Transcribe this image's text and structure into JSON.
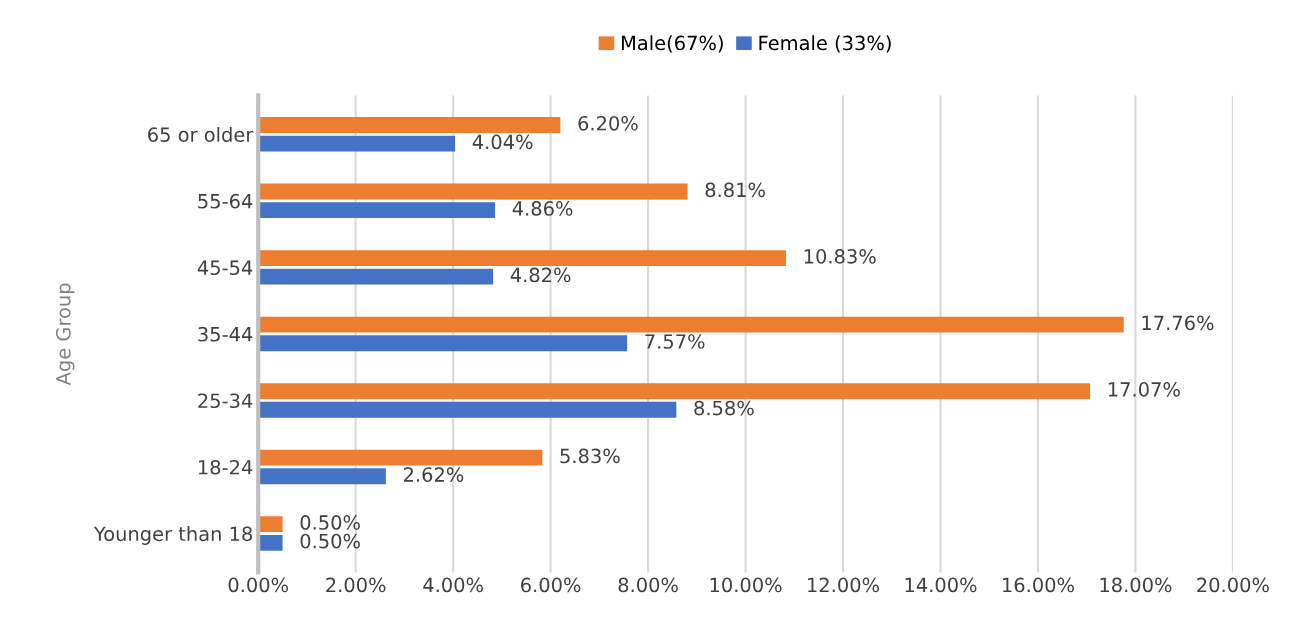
{
  "chart_data": {
    "type": "bar",
    "orientation": "horizontal",
    "ylabel": "Age Group",
    "categories": [
      "65 or older",
      "55-64",
      "45-54",
      "35-44",
      "25-34",
      "18-24",
      "Younger than 18"
    ],
    "series": [
      {
        "name": "Male(67%)",
        "color": "#ed7d31",
        "values": [
          6.2,
          8.81,
          10.83,
          17.76,
          17.07,
          5.83,
          0.5
        ],
        "value_labels": [
          "6.20%",
          "8.81%",
          "10.83%",
          "17.76%",
          "17.07%",
          "5.83%",
          "0.50%"
        ]
      },
      {
        "name": "Female (33%)",
        "color": "#4472c4",
        "values": [
          4.04,
          4.86,
          4.82,
          7.57,
          8.58,
          2.62,
          0.5
        ],
        "value_labels": [
          "4.04%",
          "4.86%",
          "4.82%",
          "7.57%",
          "8.58%",
          "2.62%",
          "0.50%"
        ]
      }
    ],
    "xlim": [
      0,
      20
    ],
    "xticks": [
      {
        "value": 0,
        "label": "0.00%"
      },
      {
        "value": 2,
        "label": "2.00%"
      },
      {
        "value": 4,
        "label": "4.00%"
      },
      {
        "value": 6,
        "label": "6.00%"
      },
      {
        "value": 8,
        "label": "8.00%"
      },
      {
        "value": 10,
        "label": "10.00%"
      },
      {
        "value": 12,
        "label": "12.00%"
      },
      {
        "value": 14,
        "label": "14.00%"
      },
      {
        "value": 16,
        "label": "16.00%"
      },
      {
        "value": 18,
        "label": "18.00%"
      },
      {
        "value": 20,
        "label": "20.00%"
      }
    ],
    "grid": "x",
    "legend": "top"
  }
}
